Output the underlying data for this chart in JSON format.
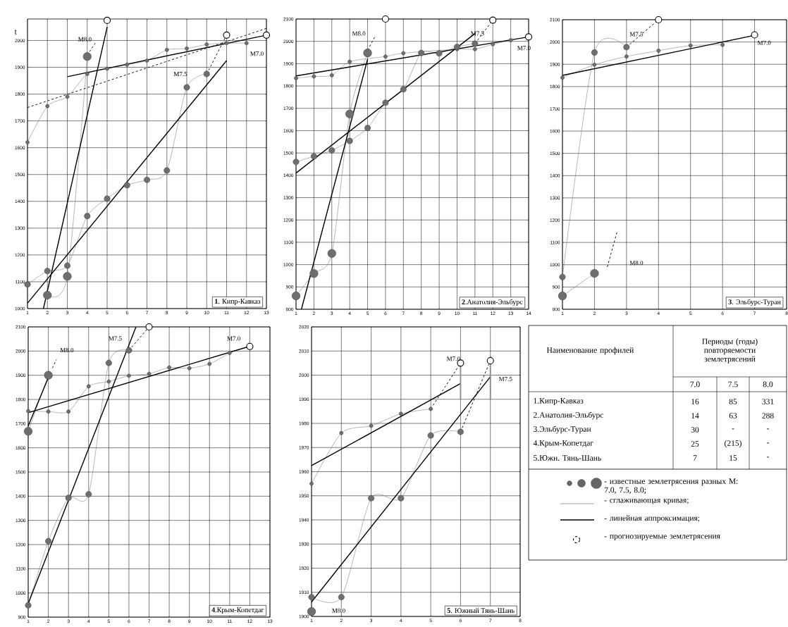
{
  "chart_data": [
    {
      "type": "line",
      "title": "**1**. Кипр-Кавказ",
      "ylabel": "t",
      "xlim": [
        1,
        13
      ],
      "ylim": [
        1000,
        2080
      ],
      "xticks": [
        1,
        2,
        3,
        4,
        5,
        6,
        7,
        8,
        9,
        10,
        11,
        12,
        13
      ],
      "yticks": [
        1000,
        1100,
        1200,
        1300,
        1400,
        1500,
        1600,
        1700,
        1800,
        1900,
        2000
      ],
      "grid": true,
      "annotations": [
        "M8.0",
        "M7.5",
        "M7.0"
      ],
      "series": [
        {
          "type": "line",
          "marker": "circle",
          "color": "#6e6e6e",
          "x": [
            1,
            2,
            3,
            4,
            5,
            6,
            7,
            8,
            9,
            10,
            11,
            12
          ],
          "values": [
            1620,
            1755,
            1790,
            1875,
            1895,
            1910,
            1925,
            1965,
            1970,
            1985,
            1990,
            1990
          ]
        },
        {
          "type": "line",
          "marker": "circle",
          "color": "#6e6e6e",
          "x": [
            1,
            2,
            3,
            4,
            5,
            6,
            7,
            8,
            9,
            10
          ],
          "values": [
            1090,
            1140,
            1160,
            1345,
            1410,
            1460,
            1480,
            1515,
            1825,
            1875
          ]
        },
        {
          "type": "line",
          "marker": "circle",
          "color": "#6e6e6e",
          "x": [
            2,
            3,
            4
          ],
          "values": [
            1050,
            1120,
            1940
          ]
        },
        {
          "type": "line",
          "color": "#000000",
          "x": [
            1.8,
            5
          ],
          "values": [
            1000,
            2050
          ]
        },
        {
          "type": "line",
          "color": "#000000",
          "x": [
            1,
            11
          ],
          "values": [
            1020,
            1925
          ]
        },
        {
          "type": "line",
          "color": "#000000",
          "x": [
            3,
            13
          ],
          "values": [
            1865,
            2020
          ]
        },
        {
          "type": "line",
          "line_style": "dashed",
          "color": "#000000",
          "x": [
            1,
            13
          ],
          "values": [
            1750,
            2045
          ]
        },
        {
          "type": "line",
          "line_style": "dashed",
          "color": "#000000",
          "x": [
            4,
            4.4
          ],
          "values": [
            1945,
            1990
          ]
        },
        {
          "type": "line",
          "line_style": "dashed",
          "color": "#000000",
          "x": [
            10,
            11
          ],
          "values": [
            1875,
            2020
          ]
        },
        {
          "type": "scatter",
          "marker": "circle",
          "color": "#000000",
          "x": [
            5,
            11,
            13
          ],
          "values": [
            2075,
            2020,
            2020
          ]
        }
      ]
    },
    {
      "type": "line",
      "title": "**2**.Анатолия-Эльбурс",
      "xlim": [
        1,
        14
      ],
      "ylim": [
        800,
        2100
      ],
      "xticks": [
        1,
        2,
        3,
        4,
        5,
        6,
        7,
        8,
        9,
        10,
        11,
        12,
        13,
        14
      ],
      "yticks": [
        800,
        900,
        1000,
        1100,
        1200,
        1300,
        1400,
        1500,
        1600,
        1700,
        1800,
        1900,
        2000,
        2100
      ],
      "grid": true,
      "annotations": [
        "M8.0",
        "M7.5",
        "M7.0"
      ],
      "series": [
        {
          "type": "line",
          "marker": "circle",
          "color": "#6e6e6e",
          "x": [
            1,
            2,
            3,
            4,
            6,
            7,
            10,
            11,
            12,
            13
          ],
          "values": [
            1835,
            1843,
            1848,
            1909,
            1932,
            1947,
            1965,
            1965,
            1987,
            2005
          ]
        },
        {
          "type": "line",
          "marker": "circle",
          "color": "#6e6e6e",
          "x": [
            1,
            2,
            3,
            4,
            5,
            6,
            7,
            8,
            9,
            10,
            11
          ],
          "values": [
            1460,
            1485,
            1512,
            1554,
            1612,
            1725,
            1785,
            1948,
            1946,
            1975,
            1990
          ]
        },
        {
          "type": "line",
          "marker": "circle",
          "color": "#6e6e6e",
          "x": [
            1,
            2,
            3,
            4,
            5
          ],
          "values": [
            860,
            960,
            1050,
            1675,
            1948
          ]
        },
        {
          "type": "line",
          "color": "#000000",
          "x": [
            1.3,
            5
          ],
          "values": [
            800,
            1920
          ]
        },
        {
          "type": "line",
          "color": "#000000",
          "x": [
            1,
            11
          ],
          "values": [
            1410,
            2035
          ]
        },
        {
          "type": "line",
          "color": "#000000",
          "x": [
            1,
            14
          ],
          "values": [
            1845,
            2020
          ]
        },
        {
          "type": "line",
          "line_style": "dashed",
          "color": "#000000",
          "x": [
            5,
            5.4
          ],
          "values": [
            1960,
            2020
          ]
        },
        {
          "type": "line",
          "line_style": "dashed",
          "color": "#000000",
          "x": [
            11,
            12
          ],
          "values": [
            1990,
            2095
          ]
        },
        {
          "type": "scatter",
          "marker": "circle",
          "color": "#000000",
          "x": [
            6,
            12,
            14
          ],
          "values": [
            2100,
            2095,
            2020
          ]
        }
      ]
    },
    {
      "type": "line",
      "title": "**3**. Эльбурс-Туран",
      "xlim": [
        1,
        8
      ],
      "ylim": [
        800,
        2100
      ],
      "xticks": [
        1,
        2,
        3,
        4,
        5,
        6,
        7,
        8
      ],
      "yticks": [
        800,
        900,
        1000,
        1100,
        1200,
        1300,
        1400,
        1500,
        1600,
        1700,
        1800,
        1900,
        2000,
        2100
      ],
      "grid": true,
      "annotations": [
        "M7.5",
        "M8.0",
        "M7.0"
      ],
      "series": [
        {
          "type": "line",
          "marker": "circle",
          "color": "#6e6e6e",
          "x": [
            1,
            2,
            3,
            4,
            5,
            6
          ],
          "values": [
            1840,
            1898,
            1935,
            1961,
            1984,
            1987
          ]
        },
        {
          "type": "line",
          "marker": "circle",
          "color": "#6e6e6e",
          "x": [
            1,
            2,
            3
          ],
          "values": [
            945,
            1953,
            1977
          ]
        },
        {
          "type": "line",
          "marker": "circle",
          "color": "#6e6e6e",
          "x": [
            1,
            2
          ],
          "values": [
            860,
            961
          ]
        },
        {
          "type": "line",
          "color": "#000000",
          "x": [
            1,
            7
          ],
          "values": [
            1850,
            2030
          ]
        },
        {
          "type": "line",
          "line_style": "dashed",
          "color": "#000000",
          "x": [
            3,
            4
          ],
          "values": [
            1977,
            2100
          ]
        },
        {
          "type": "line",
          "line_style": "dashed",
          "color": "#000000",
          "x": [
            2.4,
            2.7
          ],
          "values": [
            990,
            1145
          ]
        },
        {
          "type": "scatter",
          "marker": "circle",
          "color": "#000000",
          "x": [
            4,
            7
          ],
          "values": [
            2100,
            2032
          ]
        }
      ]
    },
    {
      "type": "line",
      "title": "**4**.Крым-Копетдаг",
      "xlim": [
        1,
        13
      ],
      "ylim": [
        900,
        2100
      ],
      "xticks": [
        1,
        2,
        3,
        4,
        5,
        6,
        7,
        8,
        9,
        10,
        11,
        12,
        13
      ],
      "yticks": [
        900,
        1000,
        1100,
        1200,
        1300,
        1400,
        1500,
        1600,
        1700,
        1800,
        1900,
        2000,
        2100
      ],
      "grid": true,
      "annotations": [
        "M8.0",
        "M7.5",
        "M7.0"
      ],
      "series": [
        {
          "type": "line",
          "marker": "circle",
          "color": "#6e6e6e",
          "x": [
            1,
            2,
            3,
            4,
            5,
            6,
            7,
            8,
            9,
            10,
            11
          ],
          "values": [
            1752,
            1750,
            1750,
            1854,
            1874,
            1898,
            1906,
            1932,
            1929,
            1947,
            1992
          ]
        },
        {
          "type": "line",
          "marker": "circle",
          "color": "#6e6e6e",
          "x": [
            1,
            2,
            3,
            4,
            5,
            6
          ],
          "values": [
            949,
            1214,
            1393,
            1408,
            1951,
            2003
          ]
        },
        {
          "type": "line",
          "marker": "circle",
          "color": "#6e6e6e",
          "x": [
            1,
            2
          ],
          "values": [
            1668,
            1900
          ]
        },
        {
          "type": "line",
          "color": "#000000",
          "x": [
            1,
            2
          ],
          "values": [
            1690,
            1890
          ]
        },
        {
          "type": "line",
          "color": "#000000",
          "x": [
            1,
            6.35
          ],
          "values": [
            956,
            2100
          ]
        },
        {
          "type": "line",
          "color": "#000000",
          "x": [
            1,
            12
          ],
          "values": [
            1745,
            2020
          ]
        },
        {
          "type": "line",
          "line_style": "dashed",
          "color": "#000000",
          "x": [
            2.2,
            2.4
          ],
          "values": [
            1930,
            1965
          ]
        },
        {
          "type": "line",
          "line_style": "dashed",
          "color": "#000000",
          "x": [
            6,
            7
          ],
          "values": [
            2003,
            2100
          ]
        },
        {
          "type": "scatter",
          "marker": "circle",
          "color": "#000000",
          "x": [
            7,
            12
          ],
          "values": [
            2100,
            2019
          ]
        }
      ]
    },
    {
      "type": "line",
      "title": "**5**. Южный Тянь-Шань",
      "xlim": [
        1,
        8
      ],
      "ylim": [
        1900,
        2020
      ],
      "xticks": [
        1,
        2,
        3,
        4,
        5,
        6,
        7,
        8
      ],
      "yticks": [
        1900,
        1910,
        1920,
        1930,
        1940,
        1950,
        1960,
        1970,
        1980,
        1990,
        2000,
        2010,
        2020
      ],
      "grid": true,
      "annotations": [
        "M7.0",
        "M7.5",
        "M8.0"
      ],
      "series": [
        {
          "type": "line",
          "marker": "circle",
          "color": "#6e6e6e",
          "x": [
            1,
            2,
            3,
            4,
            5
          ],
          "values": [
            1955,
            1976,
            1979,
            1984,
            1986
          ]
        },
        {
          "type": "line",
          "marker": "circle",
          "color": "#6e6e6e",
          "x": [
            1,
            2,
            3,
            4,
            5,
            6
          ],
          "values": [
            1908,
            1908,
            1949,
            1949,
            1975,
            1976.5
          ]
        },
        {
          "type": "line",
          "marker": "circle",
          "color": "#6e6e6e",
          "x": [
            1
          ],
          "values": [
            1902
          ]
        },
        {
          "type": "line",
          "color": "#000000",
          "x": [
            1,
            6
          ],
          "values": [
            1962.5,
            1996.5
          ]
        },
        {
          "type": "line",
          "color": "#000000",
          "x": [
            1,
            7
          ],
          "values": [
            1906,
            1999.3
          ]
        },
        {
          "type": "line",
          "line_style": "dashed",
          "color": "#000000",
          "x": [
            5,
            6
          ],
          "values": [
            1986,
            2005
          ]
        },
        {
          "type": "line",
          "line_style": "dashed",
          "color": "#000000",
          "x": [
            6,
            7
          ],
          "values": [
            1976.5,
            2006
          ]
        },
        {
          "type": "scatter",
          "marker": "circle",
          "color": "#000000",
          "x": [
            6,
            7
          ],
          "values": [
            2005,
            2006
          ],
          "errors": [
            [
              1990,
              2006
            ],
            [
              1990,
              2008
            ]
          ]
        }
      ]
    },
    {
      "type": "other",
      "xlabel": "Наименование профилей",
      "title": "Периоды (годы) повторяемости землетрясений",
      "data_labels": true,
      "categories": [
        "1.Кипр-Кавказ",
        "2.Анатолия-Эльбурс",
        "3.Эльбурс-Туран",
        "4.Крым-Копетдаг",
        "5.Южн. Тянь-Шань"
      ],
      "series": [
        {
          "name": "7.0",
          "values": [
            16,
            14,
            30,
            25,
            7
          ]
        },
        {
          "name": "7.5",
          "values": [
            85,
            63,
            null,
            215,
            15
          ],
          "value_labels": [
            "85",
            "63",
            "-",
            "(215)",
            "15"
          ]
        },
        {
          "name": "8.0",
          "values": [
            331,
            288,
            null,
            null,
            null
          ],
          "value_labels": [
            "331",
            "288",
            "-",
            "-",
            "-"
          ]
        }
      ],
      "annotations": [
        "- известные землетрясения разных M: 7.0, 7.5, 8.0;",
        "- сглаживающая кривая;",
        "- линейная аппроксимация;",
        "- прогнозируемые землетрясения"
      ]
    }
  ]
}
